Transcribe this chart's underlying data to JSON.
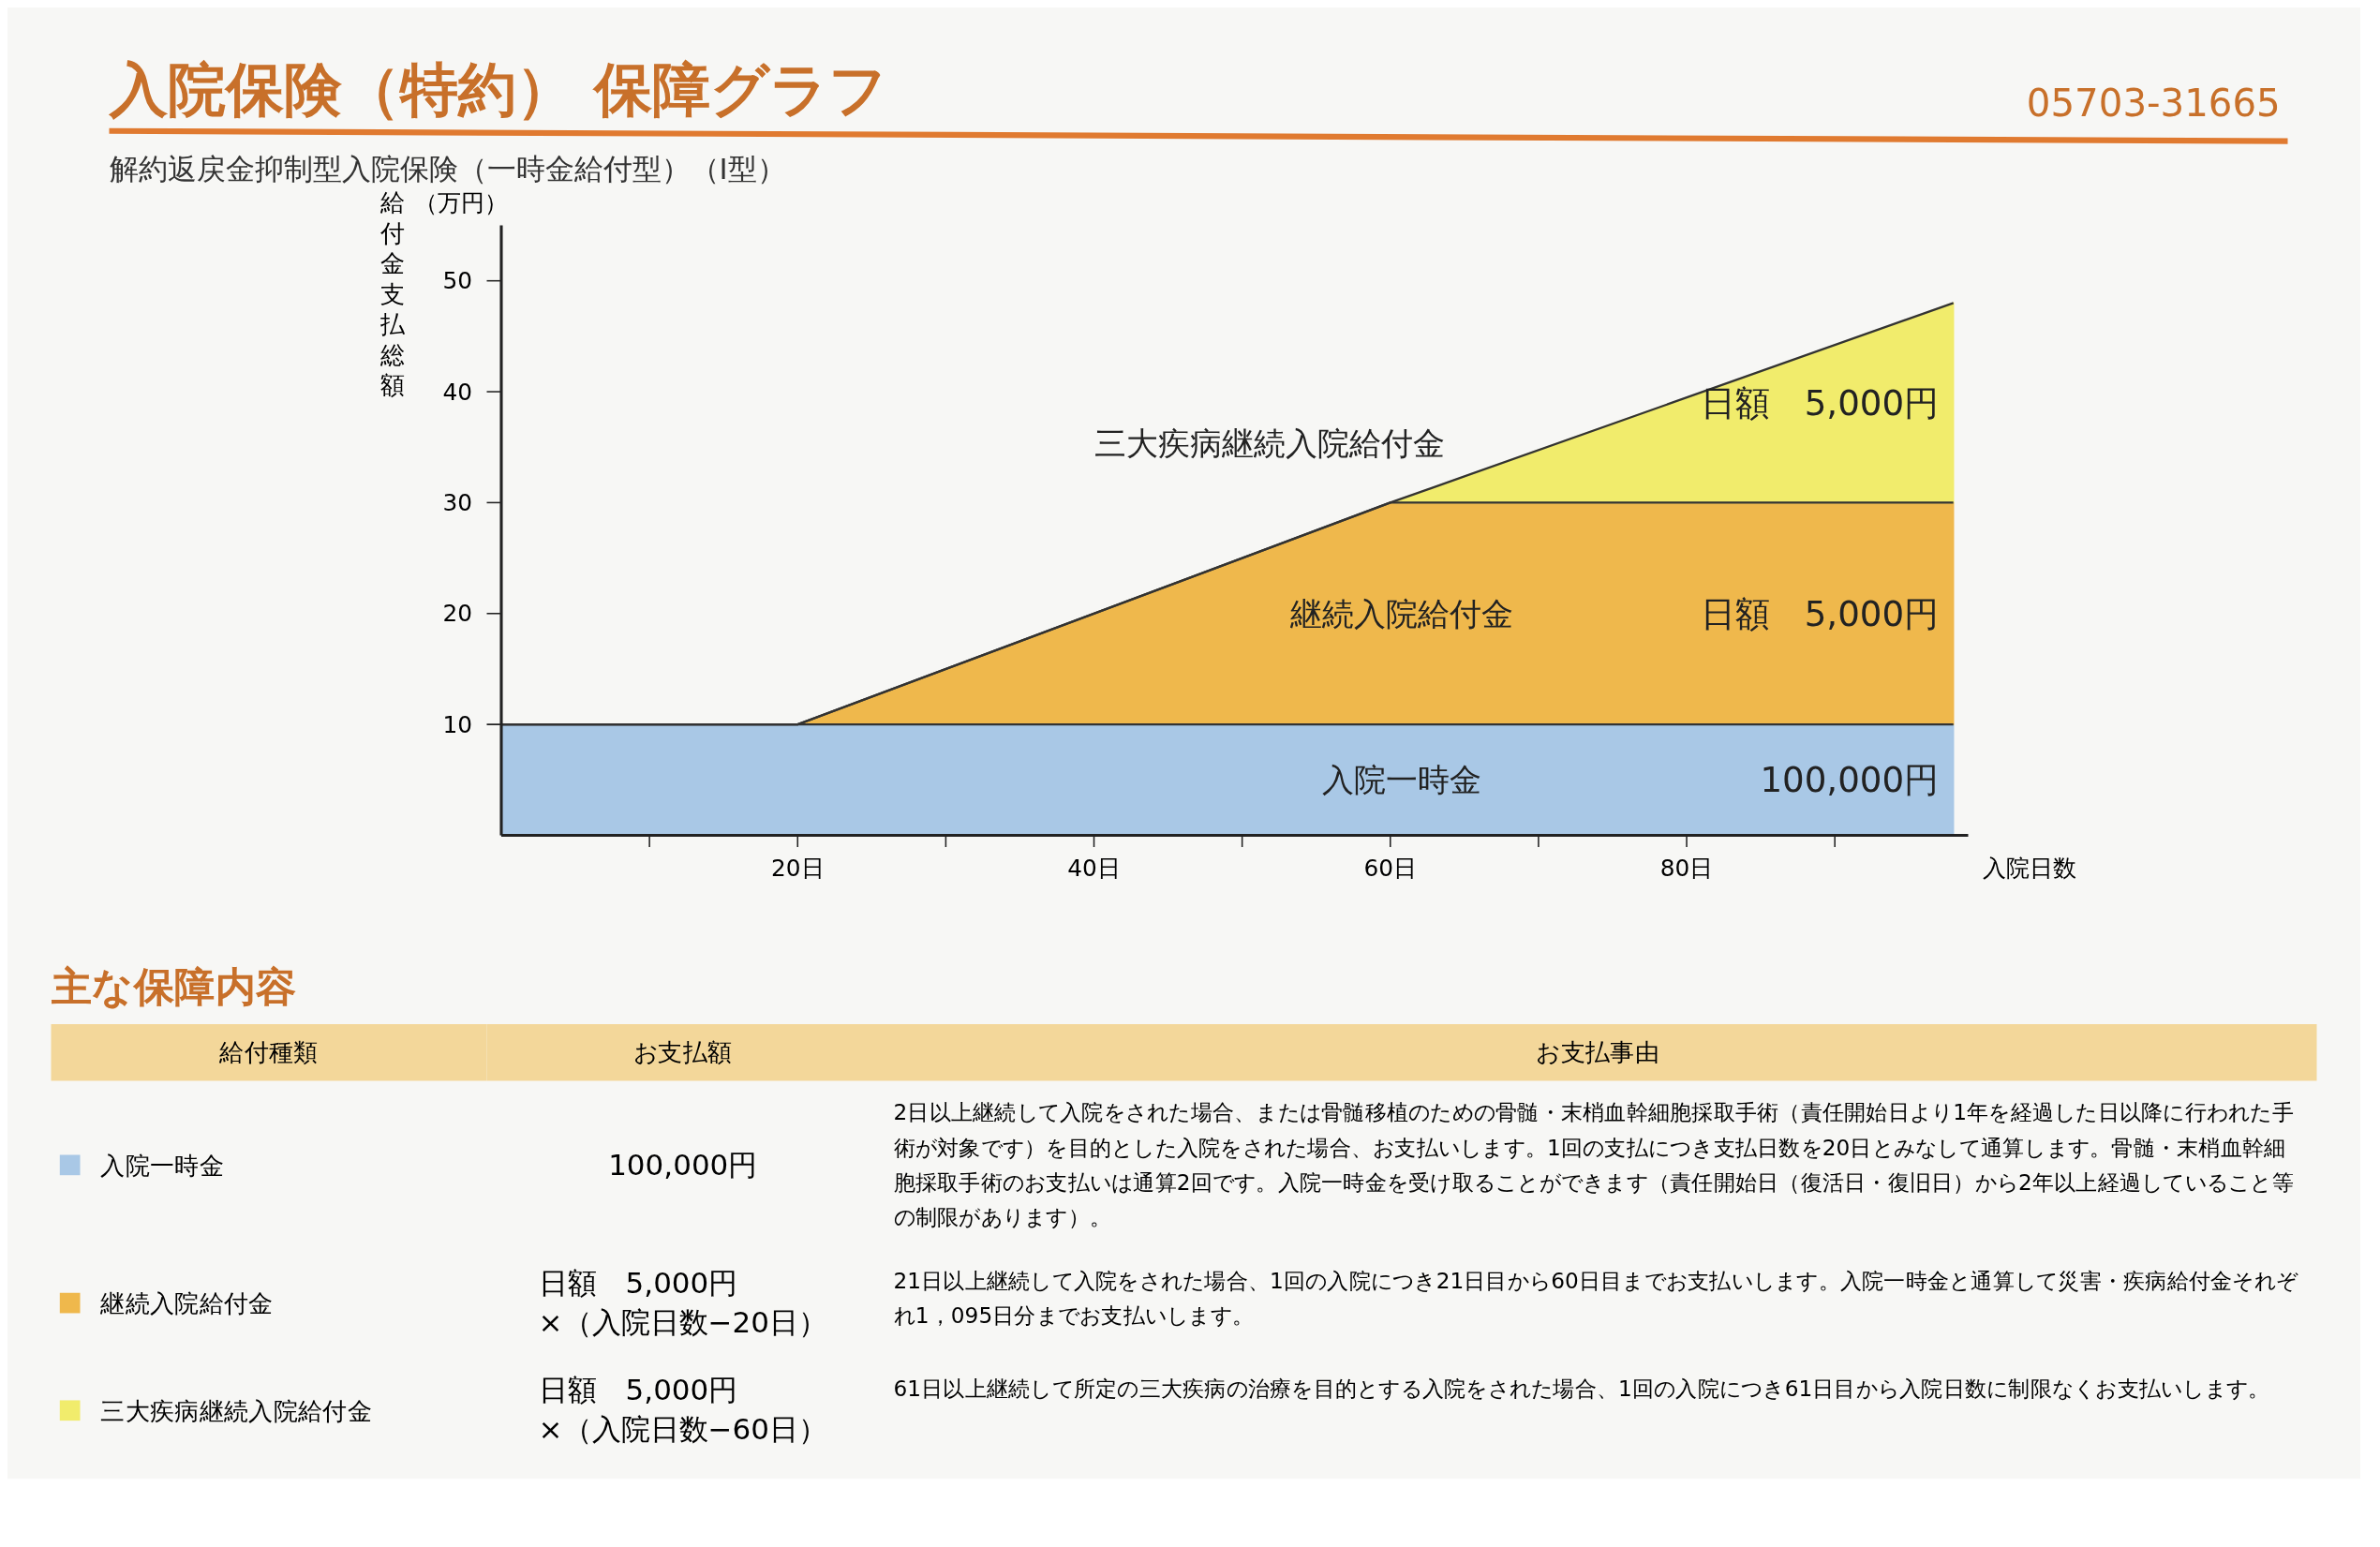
{
  "chart_data": {
    "type": "area",
    "stacked": true,
    "title": "入院保険（特約） 保障グラフ",
    "subtitle": "解約返戻金抑制型入院保険（一時金給付型）（Ⅰ型）",
    "xlabel": "入院日数",
    "ylabel": "給付金支払総額",
    "x": [
      0,
      20,
      60,
      98
    ],
    "series": [
      {
        "name": "入院一時金",
        "color": "#a9c8e6",
        "values": [
          10,
          10,
          10,
          10
        ]
      },
      {
        "name": "継続入院給付金",
        "color": "#efb84c",
        "values": [
          0,
          0,
          20,
          20
        ]
      },
      {
        "name": "三大疾病継続入院給付金",
        "color": "#f1ec6c",
        "values": [
          0,
          0,
          0,
          18
        ]
      }
    ],
    "xlim": [
      0,
      99
    ],
    "ylim": [
      0,
      55
    ],
    "xticks": [
      {
        "value": 10,
        "label": null
      },
      {
        "value": 20,
        "label": "20日"
      },
      {
        "value": 30,
        "label": null
      },
      {
        "value": 40,
        "label": "40日"
      },
      {
        "value": 50,
        "label": null
      },
      {
        "value": 60,
        "label": "60日"
      },
      {
        "value": 70,
        "label": null
      },
      {
        "value": 80,
        "label": "80日"
      },
      {
        "value": 90,
        "label": null
      }
    ],
    "yticks": [
      10,
      20,
      30,
      40,
      50
    ],
    "grid": false,
    "annotations": [
      "（万円）",
      "05703-31665",
      "日額　5,000円",
      "日額　5,000円",
      "100,000円",
      "主な保障内容",
      "給付種類",
      "お支払額",
      "お支払事由",
      "入院一時金",
      "100,000円",
      "2日以上継続して入院をされた場合、または骨髄移植のための骨髄・末梢血幹細胞採取手術（責任開始日より1年を経過した日以降に行われた手術が対象です）を目的とした入院をされた場合、お支払いします。1回の支払につき支払日数を20日とみなして通算します。骨髄・末梢血幹細胞採取手術のお支払いは通算2回です。入院一時金を受け取ることができます（責任開始日（復活日・復旧日）から2年以上経過していること等の制限があります）。",
      "継続入院給付金",
      "日額　5,000円\n×（入院日数−20日）",
      "21日以上継続して入院をされた場合、1回の入院につき21日目から60日目までお支払いします。入院一時金と通算して災害・疾病給付金それぞれ1，095日分までお支払いします。",
      "三大疾病継続入院給付金",
      "日額　5,000円\n×（入院日数−60日）",
      "61日以上継続して所定の三大疾病の治療を目的とする入院をされた場合、1回の入院につき61日目から入院日数に制限なくお支払いします。"
    ]
  }
}
